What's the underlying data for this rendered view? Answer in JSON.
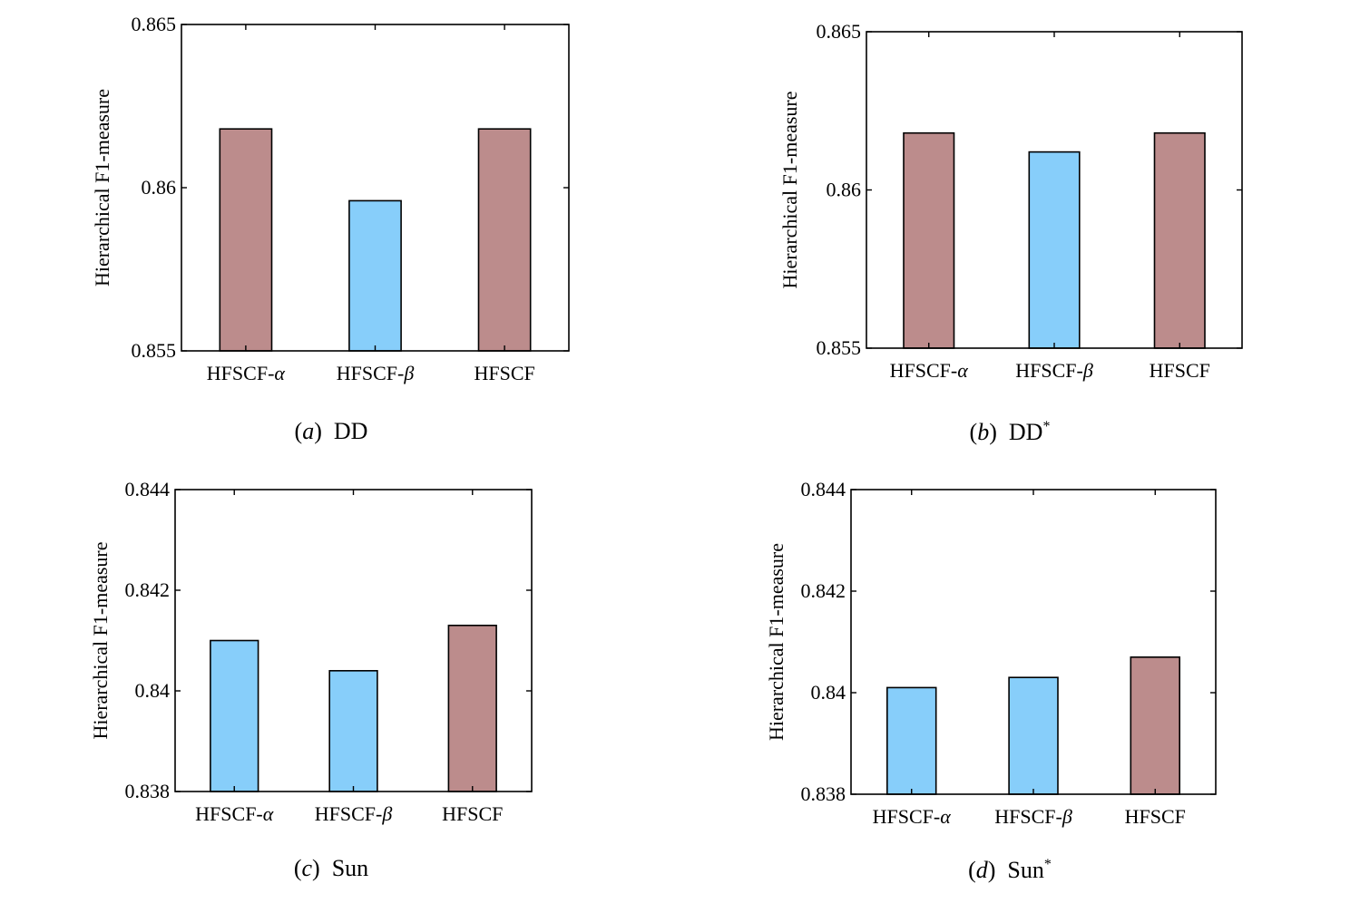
{
  "figure": {
    "ylabel": "Hierarchical F1-measure",
    "colors": {
      "blue": "#87cefa",
      "brown": "#bc8c8c"
    }
  },
  "chart_data": [
    {
      "type": "bar",
      "panel": "a",
      "caption_letter": "(a)",
      "caption_name": "DD",
      "caption_sup": "",
      "categories": [
        "HFSCF-α",
        "HFSCF-β",
        "HFSCF"
      ],
      "values": [
        0.8618,
        0.8596,
        0.8618
      ],
      "bar_colors": [
        "#bc8c8c",
        "#87cefa",
        "#bc8c8c"
      ],
      "ylim": [
        0.855,
        0.865
      ],
      "yticks": [
        0.855,
        0.86,
        0.865
      ],
      "ytick_labels": [
        "0.855",
        "0.86",
        "0.865"
      ],
      "xlabel": "",
      "ylabel": "Hierarchical F1-measure"
    },
    {
      "type": "bar",
      "panel": "b",
      "caption_letter": "(b)",
      "caption_name": "DD",
      "caption_sup": "*",
      "categories": [
        "HFSCF-α",
        "HFSCF-β",
        "HFSCF"
      ],
      "values": [
        0.8618,
        0.8612,
        0.8618
      ],
      "bar_colors": [
        "#bc8c8c",
        "#87cefa",
        "#bc8c8c"
      ],
      "ylim": [
        0.855,
        0.865
      ],
      "yticks": [
        0.855,
        0.86,
        0.865
      ],
      "ytick_labels": [
        "0.855",
        "0.86",
        "0.865"
      ],
      "xlabel": "",
      "ylabel": "Hierarchical F1-measure"
    },
    {
      "type": "bar",
      "panel": "c",
      "caption_letter": "(c)",
      "caption_name": "Sun",
      "caption_sup": "",
      "categories": [
        "HFSCF-α",
        "HFSCF-β",
        "HFSCF"
      ],
      "values": [
        0.841,
        0.8404,
        0.8413
      ],
      "bar_colors": [
        "#87cefa",
        "#87cefa",
        "#bc8c8c"
      ],
      "ylim": [
        0.838,
        0.844
      ],
      "yticks": [
        0.838,
        0.84,
        0.842,
        0.844
      ],
      "ytick_labels": [
        "0.838",
        "0.84",
        "0.842",
        "0.844"
      ],
      "xlabel": "",
      "ylabel": "Hierarchical F1-measure"
    },
    {
      "type": "bar",
      "panel": "d",
      "caption_letter": "(d)",
      "caption_name": "Sun",
      "caption_sup": "*",
      "categories": [
        "HFSCF-α",
        "HFSCF-β",
        "HFSCF"
      ],
      "values": [
        0.8401,
        0.8403,
        0.8407
      ],
      "bar_colors": [
        "#87cefa",
        "#87cefa",
        "#bc8c8c"
      ],
      "ylim": [
        0.838,
        0.844
      ],
      "yticks": [
        0.838,
        0.84,
        0.842,
        0.844
      ],
      "ytick_labels": [
        "0.838",
        "0.84",
        "0.842",
        "0.844"
      ],
      "xlabel": "",
      "ylabel": "Hierarchical F1-measure"
    }
  ]
}
